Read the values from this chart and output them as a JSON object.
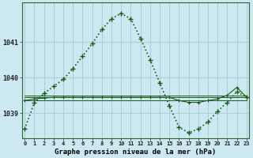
{
  "title": "Graphe pression niveau de la mer (hPa)",
  "background_color": "#cce8f0",
  "grid_color": "#aad0dc",
  "line_color": "#1a5c1a",
  "x_labels": [
    "0",
    "1",
    "2",
    "3",
    "4",
    "5",
    "6",
    "7",
    "8",
    "9",
    "10",
    "11",
    "12",
    "13",
    "14",
    "15",
    "16",
    "17",
    "18",
    "19",
    "20",
    "21",
    "22",
    "23"
  ],
  "yticks": [
    1039,
    1040,
    1041
  ],
  "ylim": [
    1038.3,
    1042.1
  ],
  "xlim": [
    -0.3,
    23.3
  ],
  "series_main": [
    1038.55,
    1039.3,
    1039.55,
    1039.75,
    1039.95,
    1040.25,
    1040.6,
    1040.95,
    1041.35,
    1041.65,
    1041.8,
    1041.65,
    1041.1,
    1040.5,
    1039.85,
    1039.2,
    1038.6,
    1038.45,
    1038.55,
    1038.75,
    1039.05,
    1039.3,
    1039.6,
    1039.45
  ],
  "series_ref1": [
    1039.35,
    1039.35,
    1039.35,
    1039.35,
    1039.35,
    1039.35,
    1039.35,
    1039.35,
    1039.35,
    1039.35,
    1039.35,
    1039.35,
    1039.35,
    1039.35,
    1039.35,
    1039.35,
    1039.35,
    1039.35,
    1039.35,
    1039.35,
    1039.35,
    1039.35,
    1039.35,
    1039.35
  ],
  "series_ref2": [
    1039.45,
    1039.45,
    1039.45,
    1039.45,
    1039.45,
    1039.45,
    1039.45,
    1039.45,
    1039.45,
    1039.45,
    1039.45,
    1039.45,
    1039.45,
    1039.45,
    1039.45,
    1039.45,
    1039.45,
    1039.45,
    1039.45,
    1039.45,
    1039.45,
    1039.45,
    1039.45,
    1039.45
  ],
  "series_ref3": [
    1039.5,
    1039.5,
    1039.5,
    1039.5,
    1039.5,
    1039.5,
    1039.5,
    1039.5,
    1039.5,
    1039.5,
    1039.5,
    1039.5,
    1039.5,
    1039.5,
    1039.5,
    1039.5,
    1039.5,
    1039.5,
    1039.5,
    1039.5,
    1039.5,
    1039.5,
    1039.5,
    1039.5
  ],
  "series_with_markers": [
    1039.35,
    1039.4,
    1039.42,
    1039.44,
    1039.44,
    1039.44,
    1039.44,
    1039.44,
    1039.44,
    1039.44,
    1039.44,
    1039.44,
    1039.44,
    1039.44,
    1039.44,
    1039.44,
    1039.35,
    1039.3,
    1039.3,
    1039.35,
    1039.4,
    1039.5,
    1039.72,
    1039.45
  ]
}
